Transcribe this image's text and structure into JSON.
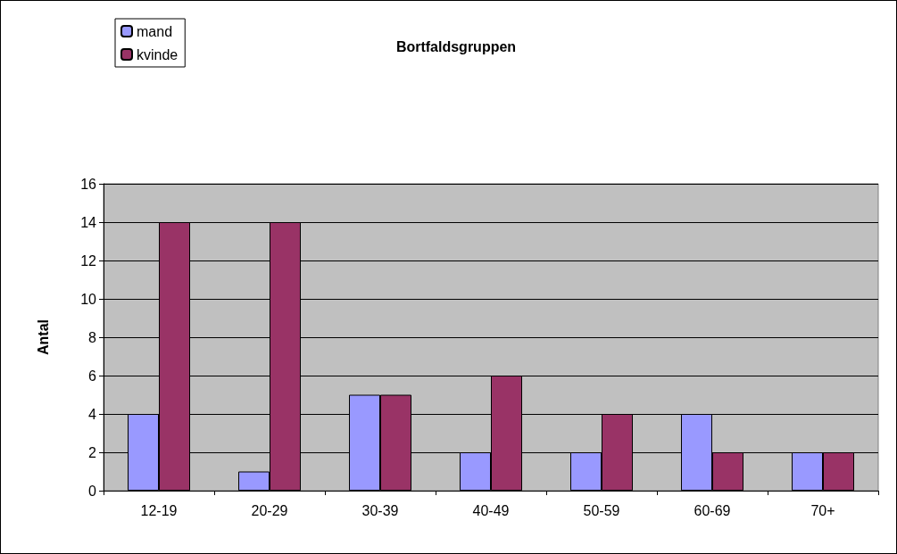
{
  "chart_data": {
    "type": "bar",
    "title": "Bortfaldsgruppen",
    "ylabel": "Antal",
    "categories": [
      "12-19",
      "20-29",
      "30-39",
      "40-49",
      "50-59",
      "60-69",
      "70+"
    ],
    "series": [
      {
        "name": "mand",
        "color": "#9999ff",
        "values": [
          4,
          1,
          5,
          2,
          2,
          4,
          2
        ]
      },
      {
        "name": "kvinde",
        "color": "#993366",
        "values": [
          14,
          14,
          5,
          6,
          4,
          2,
          2
        ]
      }
    ],
    "ylim": [
      0,
      16
    ],
    "yticks": [
      0,
      2,
      4,
      6,
      8,
      10,
      12,
      14,
      16
    ],
    "grid": "y",
    "legend": "top left"
  }
}
